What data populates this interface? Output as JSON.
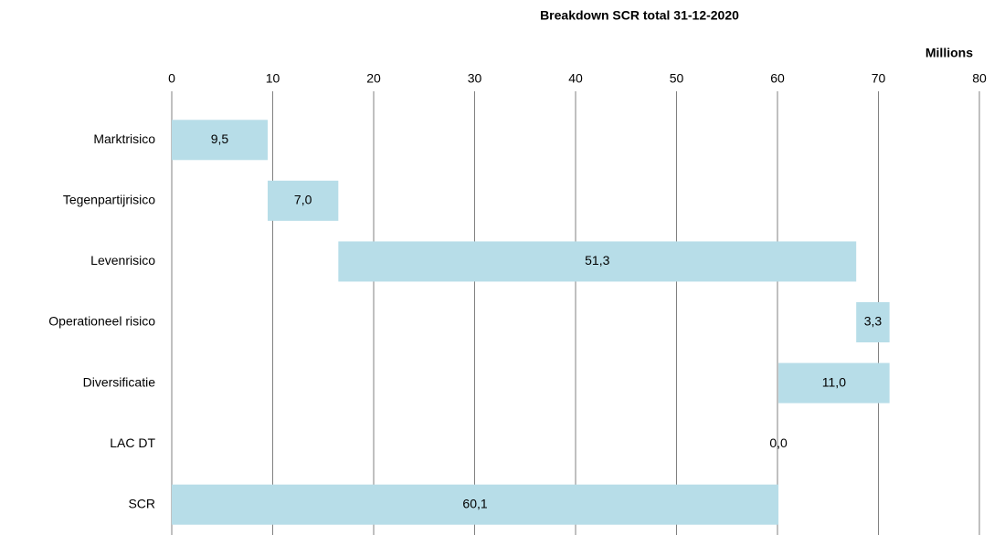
{
  "chart_data": {
    "type": "waterfall",
    "title": "Breakdown SCR total 31-12-2020",
    "x_axis_label": "Millions",
    "categories": [
      "Marktrisico",
      "Tegenpartijrisico",
      "Levenrisico",
      "Operationeel risico",
      "Diversificatie",
      "LAC DT",
      "SCR"
    ],
    "values": [
      9.5,
      7.0,
      51.3,
      3.3,
      11.0,
      0.0,
      60.1
    ],
    "value_labels": [
      "9,5",
      "7,0",
      "51,3",
      "3,3",
      "11,0",
      "0,0",
      "60,1"
    ],
    "measure": [
      "increase",
      "increase",
      "increase",
      "increase",
      "decrease",
      "increase",
      "total"
    ],
    "color": "#b7dde8",
    "xlim": [
      0,
      80
    ],
    "xticks": [
      0,
      10,
      20,
      30,
      40,
      50,
      60,
      70,
      80
    ],
    "grid": true
  }
}
